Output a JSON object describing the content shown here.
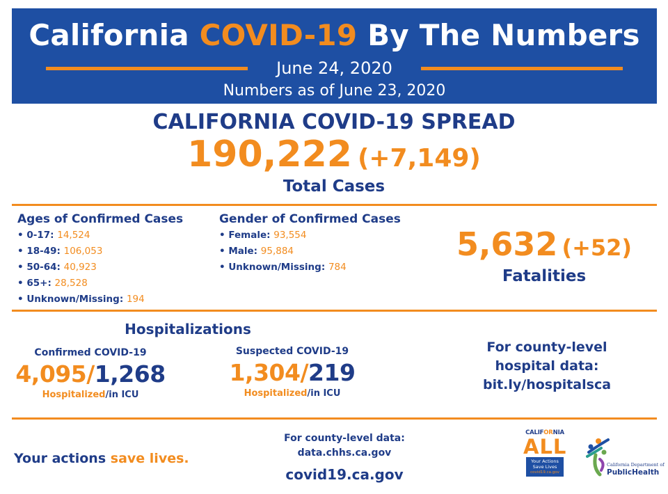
{
  "header": {
    "title_part1": "California",
    "title_highlight": "COVID-19",
    "title_part2": "By The Numbers",
    "date": "June 24, 2020",
    "as_of": "Numbers as of June 23, 2020"
  },
  "spread": {
    "title": "CALIFORNIA COVID-19 SPREAD",
    "total": "190,222",
    "delta": "(+7,149)",
    "label": "Total Cases"
  },
  "ages": {
    "title": "Ages of Confirmed Cases",
    "items": [
      {
        "label": "0-17:",
        "value": "14,524"
      },
      {
        "label": "18-49:",
        "value": "106,053"
      },
      {
        "label": "50-64:",
        "value": "40,923"
      },
      {
        "label": "65+:",
        "value": "28,528"
      },
      {
        "label": "Unknown/Missing:",
        "value": "194"
      }
    ]
  },
  "gender": {
    "title": "Gender of Confirmed Cases",
    "items": [
      {
        "label": "Female:",
        "value": "93,554"
      },
      {
        "label": "Male:",
        "value": "95,884"
      },
      {
        "label": "Unknown/Missing:",
        "value": "784"
      }
    ]
  },
  "fatalities": {
    "total": "5,632",
    "delta": "(+52)",
    "label": "Fatalities"
  },
  "hospitalizations": {
    "title": "Hospitalizations",
    "confirmed": {
      "subtitle": "Confirmed COVID-19",
      "hospitalized": "4,095",
      "icu": "1,268",
      "hosp_label": "Hospitalized",
      "icu_label": "/in ICU"
    },
    "suspected": {
      "subtitle": "Suspected COVID-19",
      "hospitalized": "1,304",
      "icu": "219",
      "hosp_label": "Hospitalized",
      "icu_label": "/in ICU"
    }
  },
  "county_hospital": {
    "line1": "For county-level",
    "line2": "hospital data:",
    "line3": "bit.ly/hospitalsca"
  },
  "footer": {
    "actions_part1": "Your actions",
    "actions_part2": "save lives.",
    "county_data_line1": "For county-level data:",
    "county_data_line2": "data.chhs.ca.gov",
    "website": "covid19.ca.gov"
  },
  "logos": {
    "ca_word_part1": "CALIF",
    "ca_word_part2": "OR",
    "ca_word_part3": "NIA",
    "ca_all": "ALL",
    "ca_tag1": "Your Actions",
    "ca_tag2": "Save Lives",
    "ca_site": "covid19.ca.gov",
    "ph_small": "California Department of",
    "ph_big": "PublicHealth"
  },
  "colors": {
    "navy": "#1f3c88",
    "header_blue": "#1e4fa3",
    "orange": "#f28c1f"
  }
}
